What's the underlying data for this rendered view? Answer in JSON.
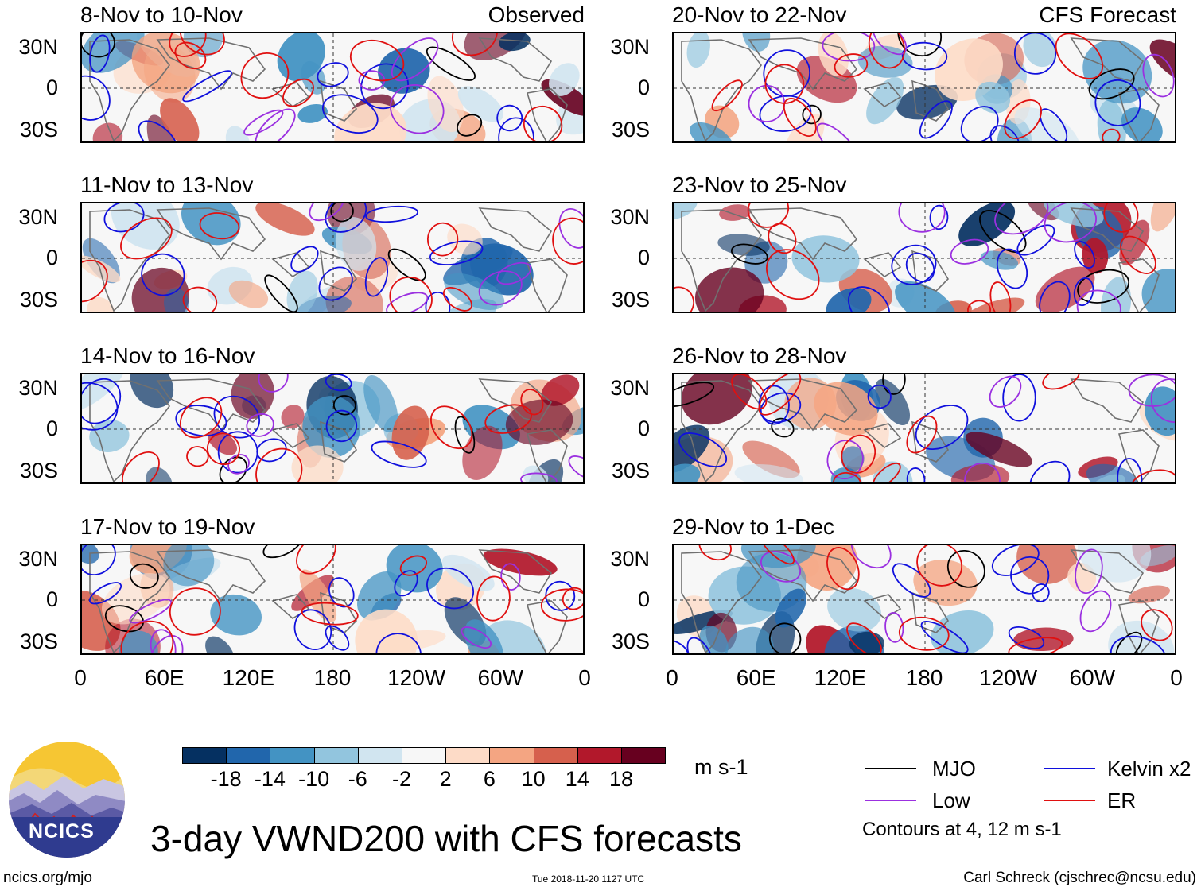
{
  "figure": {
    "main_title": "3-day VWND200 with CFS forecasts",
    "units": "m s-1",
    "footer_left": "ncics.org/mjo",
    "timestamp": "Tue 2018-11-20 1127 UTC",
    "footer_right": "Carl Schreck (cjschrec@ncsu.edu)",
    "logo_text": "NCICS",
    "contours_note": "Contours at 4, 12 m s-1"
  },
  "panel_labels": {
    "observed": "Observed",
    "forecast": "CFS Forecast"
  },
  "lat_ticks": [
    "30N",
    "0",
    "30S"
  ],
  "lon_ticks": [
    "0",
    "60E",
    "120E",
    "180",
    "120W",
    "60W",
    "0"
  ],
  "colorbar": {
    "ticks": [
      "-18",
      "-14",
      "-10",
      "-6",
      "-2",
      "2",
      "6",
      "10",
      "14",
      "18"
    ],
    "colors": [
      "#053061",
      "#2166ac",
      "#4393c3",
      "#92c5de",
      "#d1e5f0",
      "#f7f7f7",
      "#fddbc7",
      "#f4a582",
      "#d6604d",
      "#b2182b",
      "#67001f"
    ]
  },
  "legend": {
    "mjo": {
      "label": "MJO",
      "color": "#000000"
    },
    "kelvin": {
      "label": "Kelvin x2",
      "color": "#1010dd"
    },
    "low": {
      "label": "Low",
      "color": "#9b30e0"
    },
    "er": {
      "label": "ER",
      "color": "#e01010"
    }
  },
  "chart_data": {
    "type": "heatmap",
    "title": "3-day VWND200 with CFS forecasts",
    "variable": "200-hPa meridional wind (VWND200), 3-day mean",
    "units": "m s-1",
    "color_levels": [
      -18,
      -14,
      -10,
      -6,
      -2,
      2,
      6,
      10,
      14,
      18
    ],
    "contour_levels": [
      4,
      12
    ],
    "lon_range": [
      0,
      360
    ],
    "lat_range": [
      -40,
      40
    ],
    "panels": [
      {
        "title": "8-Nov to 10-Nov",
        "source": "Observed"
      },
      {
        "title": "11-Nov to 13-Nov",
        "source": "Observed"
      },
      {
        "title": "14-Nov to 16-Nov",
        "source": "Observed"
      },
      {
        "title": "17-Nov to 19-Nov",
        "source": "Observed"
      },
      {
        "title": "20-Nov to 22-Nov",
        "source": "CFS Forecast"
      },
      {
        "title": "23-Nov to 25-Nov",
        "source": "CFS Forecast"
      },
      {
        "title": "26-Nov to 28-Nov",
        "source": "CFS Forecast"
      },
      {
        "title": "29-Nov to 1-Dec",
        "source": "CFS Forecast"
      }
    ]
  }
}
